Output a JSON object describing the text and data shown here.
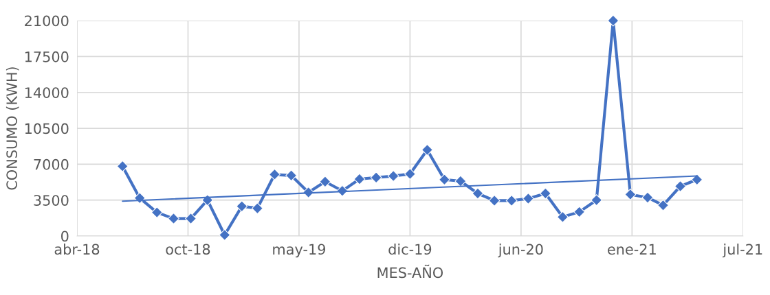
{
  "chart_data": {
    "type": "line",
    "xlabel": "MES-AÑO",
    "ylabel": "CONSUMO (KWH)",
    "x": [
      "2018-07",
      "2018-08",
      "2018-09",
      "2018-10",
      "2018-11",
      "2018-12",
      "2019-01",
      "2019-02",
      "2019-03",
      "2019-04",
      "2019-05",
      "2019-06",
      "2019-07",
      "2019-08",
      "2019-09",
      "2019-10",
      "2019-11",
      "2019-12",
      "2020-01",
      "2020-02",
      "2020-03",
      "2020-04",
      "2020-05",
      "2020-06",
      "2020-07",
      "2020-08",
      "2020-09",
      "2020-10",
      "2020-11",
      "2020-12",
      "2021-01",
      "2021-02",
      "2021-03",
      "2021-04",
      "2021-05"
    ],
    "series": [
      {
        "color": "#4472c4",
        "marker": "diamond",
        "values": [
          6800,
          3700,
          2300,
          1700,
          1700,
          3500,
          100,
          2900,
          2700,
          6000,
          5900,
          4250,
          5300,
          4400,
          5550,
          5700,
          5850,
          6050,
          8400,
          5500,
          5350,
          4150,
          3450,
          3450,
          3650,
          4150,
          1850,
          2350,
          3500,
          21000,
          4050,
          3750,
          3000,
          4850,
          5500
        ]
      },
      {
        "type": "line",
        "color": "#4472c4",
        "marker": "none",
        "x": [
          "2018-07",
          "2021-05"
        ],
        "values": [
          3400,
          5850
        ]
      }
    ],
    "xlim": [
      "2018-04-10",
      "2021-07-23"
    ],
    "xticks": [
      {
        "value": "2018-04-10",
        "label": "abr-18"
      },
      {
        "value": "2018-10-27",
        "label": "oct-18"
      },
      {
        "value": "2019-05-15",
        "label": "may-19"
      },
      {
        "value": "2019-12-01",
        "label": "dic-19"
      },
      {
        "value": "2020-06-18",
        "label": "jun-20"
      },
      {
        "value": "2021-01-04",
        "label": "ene-21"
      },
      {
        "value": "2021-07-23",
        "label": "jul-21"
      }
    ],
    "ylim": [
      0,
      21000
    ],
    "yticks": [
      0,
      3500,
      7000,
      10500,
      14000,
      17500,
      21000
    ],
    "grid": true
  }
}
